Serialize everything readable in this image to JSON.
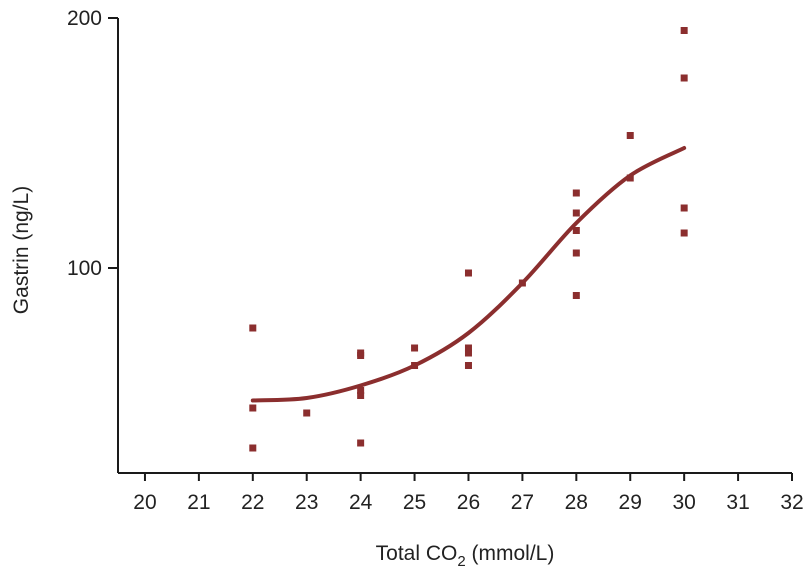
{
  "chart_data": {
    "type": "scatter",
    "xlabel": {
      "prefix": "Total CO",
      "subscript": "2",
      "suffix": " (mmol/L)"
    },
    "ylabel": "Gastrin (ng/L)",
    "xlim": [
      19.5,
      32
    ],
    "ylim": [
      18,
      200
    ],
    "x_ticks": [
      20,
      21,
      22,
      23,
      24,
      25,
      26,
      27,
      28,
      29,
      30,
      31,
      32
    ],
    "y_ticks": [
      100,
      200
    ],
    "grid": false,
    "colors": {
      "points": "#8b2e2e",
      "curve": "#8b2e2e",
      "axis": "#1a1a1a"
    },
    "series": [
      {
        "type": "scatter",
        "points": [
          {
            "x": 22,
            "y": 76
          },
          {
            "x": 22,
            "y": 44
          },
          {
            "x": 22,
            "y": 28
          },
          {
            "x": 23,
            "y": 42
          },
          {
            "x": 24,
            "y": 66
          },
          {
            "x": 24,
            "y": 65
          },
          {
            "x": 24,
            "y": 51
          },
          {
            "x": 24,
            "y": 49
          },
          {
            "x": 24,
            "y": 30
          },
          {
            "x": 25,
            "y": 68
          },
          {
            "x": 25,
            "y": 61
          },
          {
            "x": 26,
            "y": 98
          },
          {
            "x": 26,
            "y": 68
          },
          {
            "x": 26,
            "y": 66
          },
          {
            "x": 26,
            "y": 61
          },
          {
            "x": 27,
            "y": 94
          },
          {
            "x": 28,
            "y": 130
          },
          {
            "x": 28,
            "y": 122
          },
          {
            "x": 28,
            "y": 115
          },
          {
            "x": 28,
            "y": 106
          },
          {
            "x": 28,
            "y": 89
          },
          {
            "x": 29,
            "y": 153
          },
          {
            "x": 29,
            "y": 136
          },
          {
            "x": 30,
            "y": 195
          },
          {
            "x": 30,
            "y": 176
          },
          {
            "x": 30,
            "y": 124
          },
          {
            "x": 30,
            "y": 114
          }
        ]
      },
      {
        "type": "line",
        "smooth": true,
        "points": [
          {
            "x": 22,
            "y": 47
          },
          {
            "x": 23,
            "y": 48
          },
          {
            "x": 24,
            "y": 53
          },
          {
            "x": 25,
            "y": 61
          },
          {
            "x": 26,
            "y": 74
          },
          {
            "x": 27,
            "y": 94
          },
          {
            "x": 28,
            "y": 118
          },
          {
            "x": 29,
            "y": 137
          },
          {
            "x": 30,
            "y": 148
          }
        ]
      }
    ]
  }
}
